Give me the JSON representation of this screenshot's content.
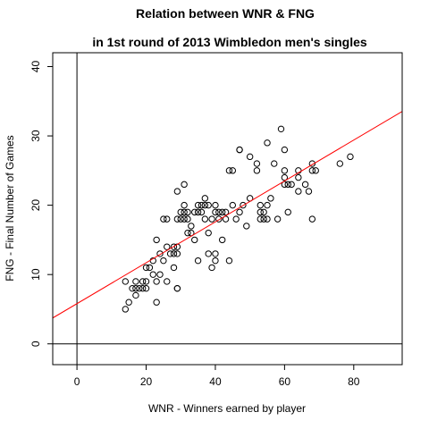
{
  "chart_data": {
    "type": "scatter",
    "title_line1": "Relation between WNR & FNG",
    "title_line2": "in 1st round of 2013 Wimbledon men's singles",
    "xlabel": "WNR - Winners earned by player",
    "ylabel": "FNG - Final Number of Games",
    "xlim": [
      -7,
      94
    ],
    "ylim": [
      -3,
      42
    ],
    "xticks": [
      "0",
      "20",
      "40",
      "60",
      "80"
    ],
    "xtick_values": [
      0,
      20,
      40,
      60,
      80
    ],
    "yticks": [
      "0",
      "10",
      "20",
      "30",
      "40"
    ],
    "ytick_values": [
      0,
      10,
      20,
      30,
      40
    ],
    "reference_lines": {
      "vertical_at_x": 0,
      "horizontal_at_y": 0
    },
    "regression_line": {
      "intercept": 5.8,
      "slope": 0.295,
      "color": "#ff0000"
    },
    "point_color": "#000000",
    "points": [
      [
        14,
        9
      ],
      [
        14,
        5
      ],
      [
        15,
        6
      ],
      [
        16,
        8
      ],
      [
        17,
        9
      ],
      [
        17,
        8
      ],
      [
        17,
        7
      ],
      [
        18,
        8
      ],
      [
        19,
        9
      ],
      [
        19,
        8
      ],
      [
        20,
        11
      ],
      [
        20,
        9
      ],
      [
        20,
        8
      ],
      [
        21,
        11
      ],
      [
        22,
        12
      ],
      [
        22,
        10
      ],
      [
        23,
        15
      ],
      [
        23,
        9
      ],
      [
        23,
        6
      ],
      [
        24,
        10
      ],
      [
        24,
        13
      ],
      [
        25,
        12
      ],
      [
        25,
        18
      ],
      [
        26,
        14
      ],
      [
        26,
        9
      ],
      [
        26,
        18
      ],
      [
        27,
        13
      ],
      [
        28,
        11
      ],
      [
        28,
        14
      ],
      [
        28,
        13
      ],
      [
        29,
        22
      ],
      [
        29,
        14
      ],
      [
        29,
        13
      ],
      [
        29,
        8
      ],
      [
        29,
        8
      ],
      [
        29,
        18
      ],
      [
        30,
        19
      ],
      [
        30,
        18
      ],
      [
        31,
        23
      ],
      [
        31,
        20
      ],
      [
        31,
        19
      ],
      [
        31,
        18
      ],
      [
        32,
        19
      ],
      [
        32,
        18
      ],
      [
        32,
        16
      ],
      [
        33,
        17
      ],
      [
        33,
        16
      ],
      [
        34,
        19
      ],
      [
        34,
        15
      ],
      [
        35,
        20
      ],
      [
        35,
        19
      ],
      [
        35,
        12
      ],
      [
        36,
        20
      ],
      [
        36,
        19
      ],
      [
        37,
        21
      ],
      [
        37,
        20
      ],
      [
        37,
        18
      ],
      [
        38,
        16
      ],
      [
        38,
        13
      ],
      [
        38,
        20
      ],
      [
        39,
        18
      ],
      [
        39,
        11
      ],
      [
        40,
        20
      ],
      [
        40,
        19
      ],
      [
        40,
        13
      ],
      [
        40,
        12
      ],
      [
        41,
        18
      ],
      [
        41,
        19
      ],
      [
        42,
        15
      ],
      [
        42,
        19
      ],
      [
        43,
        19
      ],
      [
        43,
        18
      ],
      [
        44,
        12
      ],
      [
        44,
        25
      ],
      [
        45,
        20
      ],
      [
        45,
        25
      ],
      [
        46,
        18
      ],
      [
        47,
        28
      ],
      [
        47,
        28
      ],
      [
        47,
        19
      ],
      [
        48,
        20
      ],
      [
        49,
        17
      ],
      [
        50,
        27
      ],
      [
        50,
        21
      ],
      [
        52,
        25
      ],
      [
        52,
        26
      ],
      [
        53,
        20
      ],
      [
        53,
        18
      ],
      [
        53,
        19
      ],
      [
        54,
        19
      ],
      [
        54,
        18
      ],
      [
        55,
        20
      ],
      [
        55,
        29
      ],
      [
        55,
        18
      ],
      [
        56,
        21
      ],
      [
        57,
        26
      ],
      [
        58,
        18
      ],
      [
        59,
        31
      ],
      [
        60,
        28
      ],
      [
        60,
        25
      ],
      [
        60,
        24
      ],
      [
        60,
        23
      ],
      [
        61,
        23
      ],
      [
        61,
        19
      ],
      [
        62,
        23
      ],
      [
        64,
        25
      ],
      [
        64,
        22
      ],
      [
        64,
        24
      ],
      [
        66,
        23
      ],
      [
        67,
        22
      ],
      [
        68,
        26
      ],
      [
        68,
        25
      ],
      [
        68,
        18
      ],
      [
        69,
        25
      ],
      [
        76,
        26
      ],
      [
        79,
        27
      ]
    ]
  }
}
